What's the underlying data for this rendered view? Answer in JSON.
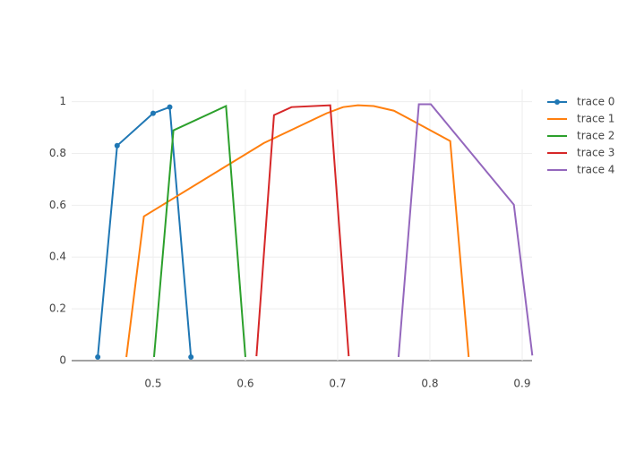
{
  "chart_data": {
    "type": "line",
    "xlim": [
      0.4117,
      0.9107
    ],
    "ylim": [
      0,
      1.047
    ],
    "xticks": [
      0.5,
      0.6,
      0.7,
      0.8,
      0.9
    ],
    "yticks": [
      0,
      0.2,
      0.4,
      0.6,
      0.8,
      1
    ],
    "grid": true,
    "legend": "top-right",
    "series": [
      {
        "name": "trace 0",
        "color": "#1f77b4",
        "markers": true,
        "x": [
          0.44,
          0.461,
          0.5,
          0.518,
          0.541
        ],
        "values": [
          0.014,
          0.83,
          0.955,
          0.979,
          0.014
        ]
      },
      {
        "name": "trace 1",
        "color": "#ff7f0e",
        "markers": false,
        "x": [
          0.471,
          0.49,
          0.62,
          0.688,
          0.706,
          0.722,
          0.739,
          0.761,
          0.781,
          0.822,
          0.842
        ],
        "values": [
          0.014,
          0.557,
          0.84,
          0.955,
          0.979,
          0.986,
          0.983,
          0.965,
          0.927,
          0.848,
          0.014
        ]
      },
      {
        "name": "trace 2",
        "color": "#2ca02c",
        "markers": false,
        "x": [
          0.501,
          0.522,
          0.579,
          0.6
        ],
        "values": [
          0.014,
          0.889,
          0.983,
          0.014
        ]
      },
      {
        "name": "trace 3",
        "color": "#d62728",
        "markers": false,
        "x": [
          0.612,
          0.631,
          0.65,
          0.692,
          0.712
        ],
        "values": [
          0.017,
          0.948,
          0.979,
          0.986,
          0.017
        ]
      },
      {
        "name": "trace 4",
        "color": "#9467bd",
        "markers": false,
        "x": [
          0.766,
          0.788,
          0.801,
          0.891,
          0.911
        ],
        "values": [
          0.014,
          0.99,
          0.99,
          0.602,
          0.02
        ]
      }
    ]
  }
}
